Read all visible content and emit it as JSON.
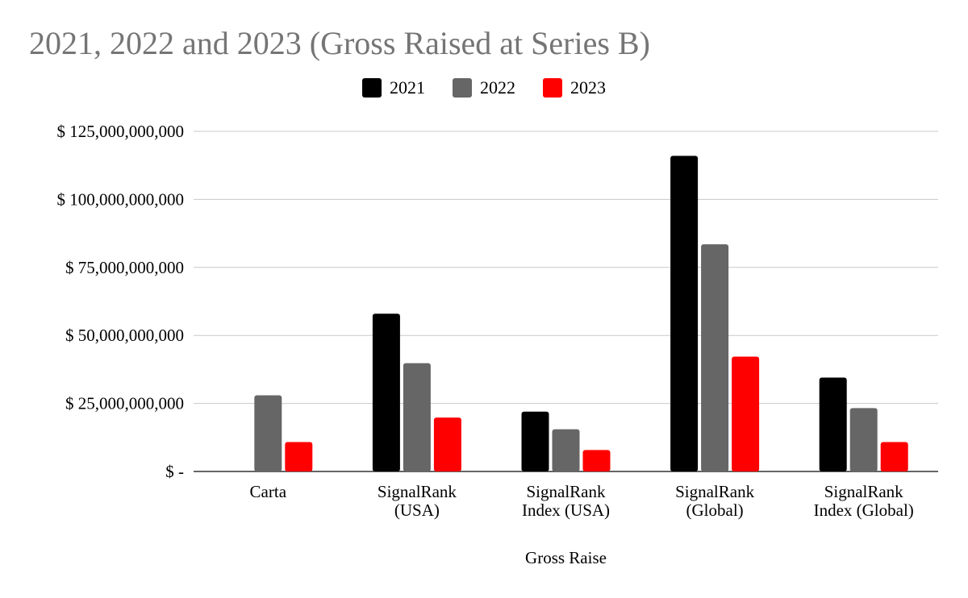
{
  "chart_data": {
    "type": "bar",
    "title": "2021, 2022 and 2023 (Gross Raised at Series B)",
    "xlabel": "Gross Raise",
    "ylabel": "",
    "ylim": [
      0,
      125000000000
    ],
    "yticks": [
      {
        "value": 0,
        "label": "$ -"
      },
      {
        "value": 25000000000,
        "label": "$ 25,000,000,000"
      },
      {
        "value": 50000000000,
        "label": "$ 50,000,000,000"
      },
      {
        "value": 75000000000,
        "label": "$ 75,000,000,000"
      },
      {
        "value": 100000000000,
        "label": "$ 100,000,000,000"
      },
      {
        "value": 125000000000,
        "label": "$ 125,000,000,000"
      }
    ],
    "categories": [
      [
        "Carta"
      ],
      [
        "SignalRank",
        "(USA)"
      ],
      [
        "SignalRank",
        "Index (USA)"
      ],
      [
        "SignalRank",
        "(Global)"
      ],
      [
        "SignalRank",
        "Index (Global)"
      ]
    ],
    "series": [
      {
        "name": "2021",
        "color": "#000000",
        "values": [
          0,
          58000000000,
          22000000000,
          116000000000,
          34500000000
        ]
      },
      {
        "name": "2022",
        "color": "#666666",
        "values": [
          28000000000,
          39800000000,
          15500000000,
          83500000000,
          23300000000
        ]
      },
      {
        "name": "2023",
        "color": "#ff0000",
        "values": [
          10800000000,
          19800000000,
          7900000000,
          42200000000,
          10800000000
        ]
      }
    ],
    "grid": true,
    "legend_position": "top"
  }
}
